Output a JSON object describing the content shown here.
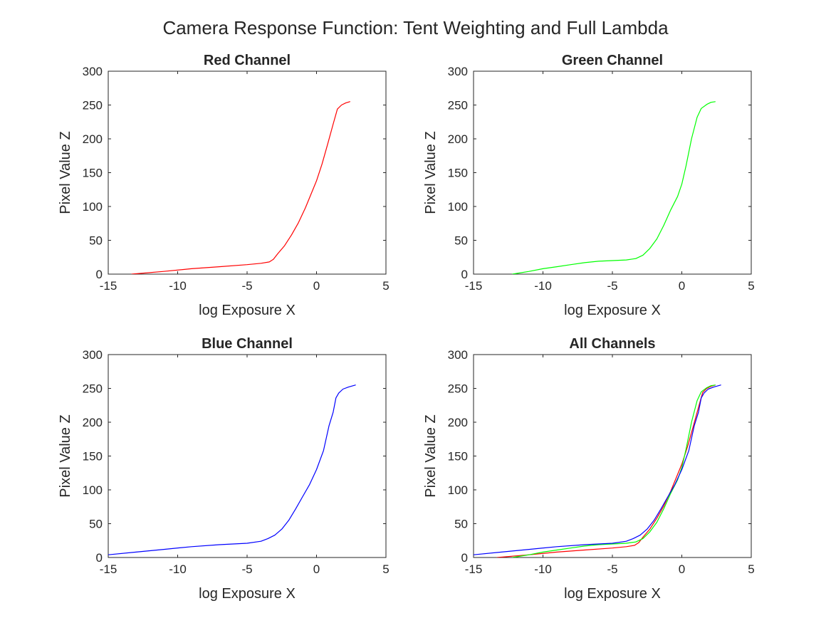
{
  "figure": {
    "title": "Camera Response Function: Tent Weighting and Full Lambda"
  },
  "chart_data": [
    {
      "type": "line",
      "title": "Red Channel",
      "xlabel": "log Exposure X",
      "ylabel": "Pixel Value Z",
      "xlim": [
        -15,
        5
      ],
      "ylim": [
        0,
        300
      ],
      "xticks": [
        -15,
        -10,
        -5,
        0,
        5
      ],
      "yticks": [
        0,
        50,
        100,
        150,
        200,
        250,
        300
      ],
      "grid": false,
      "series": [
        {
          "color": "#ff0000",
          "x": [
            -13.3,
            -11,
            -9,
            -7,
            -5,
            -4,
            -3.4,
            -3.1,
            -2.8,
            -2.3,
            -1.8,
            -1.3,
            -0.8,
            -0.4,
            0,
            0.4,
            0.8,
            1.2,
            1.5,
            1.8,
            2.1,
            2.4
          ],
          "y": [
            0,
            4,
            8,
            11,
            14,
            16,
            18,
            22,
            30,
            42,
            58,
            76,
            98,
            118,
            138,
            163,
            192,
            222,
            244,
            250,
            253,
            255
          ]
        }
      ]
    },
    {
      "type": "line",
      "title": "Green Channel",
      "xlabel": "log Exposure X",
      "ylabel": "Pixel Value Z",
      "xlim": [
        -15,
        5
      ],
      "ylim": [
        0,
        300
      ],
      "xticks": [
        -15,
        -10,
        -5,
        0,
        5
      ],
      "yticks": [
        0,
        50,
        100,
        150,
        200,
        250,
        300
      ],
      "grid": false,
      "series": [
        {
          "color": "#00ff00",
          "x": [
            -12.2,
            -11,
            -10,
            -9,
            -8,
            -7,
            -6,
            -5,
            -4,
            -3.3,
            -2.8,
            -2.3,
            -1.8,
            -1.3,
            -0.8,
            -0.3,
            0,
            0.3,
            0.7,
            1.1,
            1.4,
            1.8,
            2.1,
            2.4
          ],
          "y": [
            0,
            4,
            8,
            11,
            14,
            17,
            19,
            20,
            21,
            23,
            28,
            38,
            52,
            72,
            95,
            115,
            133,
            160,
            200,
            232,
            245,
            251,
            254,
            255
          ]
        }
      ]
    },
    {
      "type": "line",
      "title": "Blue Channel",
      "xlabel": "log Exposure X",
      "ylabel": "Pixel Value Z",
      "xlim": [
        -15,
        5
      ],
      "ylim": [
        0,
        300
      ],
      "xticks": [
        -15,
        -10,
        -5,
        0,
        5
      ],
      "yticks": [
        0,
        50,
        100,
        150,
        200,
        250,
        300
      ],
      "grid": false,
      "series": [
        {
          "color": "#0000ff",
          "x": [
            -15,
            -13,
            -11,
            -9,
            -7,
            -5,
            -4,
            -3.5,
            -3,
            -2.5,
            -2,
            -1.5,
            -1,
            -0.5,
            0,
            0.5,
            0.9,
            1.2,
            1.4,
            1.6,
            1.9,
            2.3,
            2.8
          ],
          "y": [
            4,
            8,
            12,
            16,
            19,
            21,
            24,
            28,
            33,
            42,
            55,
            72,
            90,
            108,
            130,
            158,
            195,
            215,
            236,
            243,
            249,
            252,
            255
          ]
        }
      ]
    },
    {
      "type": "line",
      "title": "All Channels",
      "xlabel": "log Exposure X",
      "ylabel": "Pixel Value Z",
      "xlim": [
        -15,
        5
      ],
      "ylim": [
        0,
        300
      ],
      "xticks": [
        -15,
        -10,
        -5,
        0,
        5
      ],
      "yticks": [
        0,
        50,
        100,
        150,
        200,
        250,
        300
      ],
      "grid": false,
      "series": [
        {
          "color": "#ff0000",
          "x": [
            -13.3,
            -11,
            -9,
            -7,
            -5,
            -4,
            -3.4,
            -3.1,
            -2.8,
            -2.3,
            -1.8,
            -1.3,
            -0.8,
            -0.4,
            0,
            0.4,
            0.8,
            1.2,
            1.5,
            1.8,
            2.1,
            2.4
          ],
          "y": [
            0,
            4,
            8,
            11,
            14,
            16,
            18,
            22,
            30,
            42,
            58,
            76,
            98,
            118,
            138,
            163,
            192,
            222,
            244,
            250,
            253,
            255
          ]
        },
        {
          "color": "#00ff00",
          "x": [
            -12.2,
            -11,
            -10,
            -9,
            -8,
            -7,
            -6,
            -5,
            -4,
            -3.3,
            -2.8,
            -2.3,
            -1.8,
            -1.3,
            -0.8,
            -0.3,
            0,
            0.3,
            0.7,
            1.1,
            1.4,
            1.8,
            2.1,
            2.4
          ],
          "y": [
            0,
            4,
            8,
            11,
            14,
            17,
            19,
            20,
            21,
            23,
            28,
            38,
            52,
            72,
            95,
            115,
            133,
            160,
            200,
            232,
            245,
            251,
            254,
            255
          ]
        },
        {
          "color": "#0000ff",
          "x": [
            -15,
            -13,
            -11,
            -9,
            -7,
            -5,
            -4,
            -3.5,
            -3,
            -2.5,
            -2,
            -1.5,
            -1,
            -0.5,
            0,
            0.5,
            0.9,
            1.2,
            1.4,
            1.6,
            1.9,
            2.3,
            2.8
          ],
          "y": [
            4,
            8,
            12,
            16,
            19,
            21,
            24,
            28,
            33,
            42,
            55,
            72,
            90,
            108,
            130,
            158,
            195,
            215,
            236,
            243,
            249,
            252,
            255
          ]
        }
      ]
    }
  ]
}
